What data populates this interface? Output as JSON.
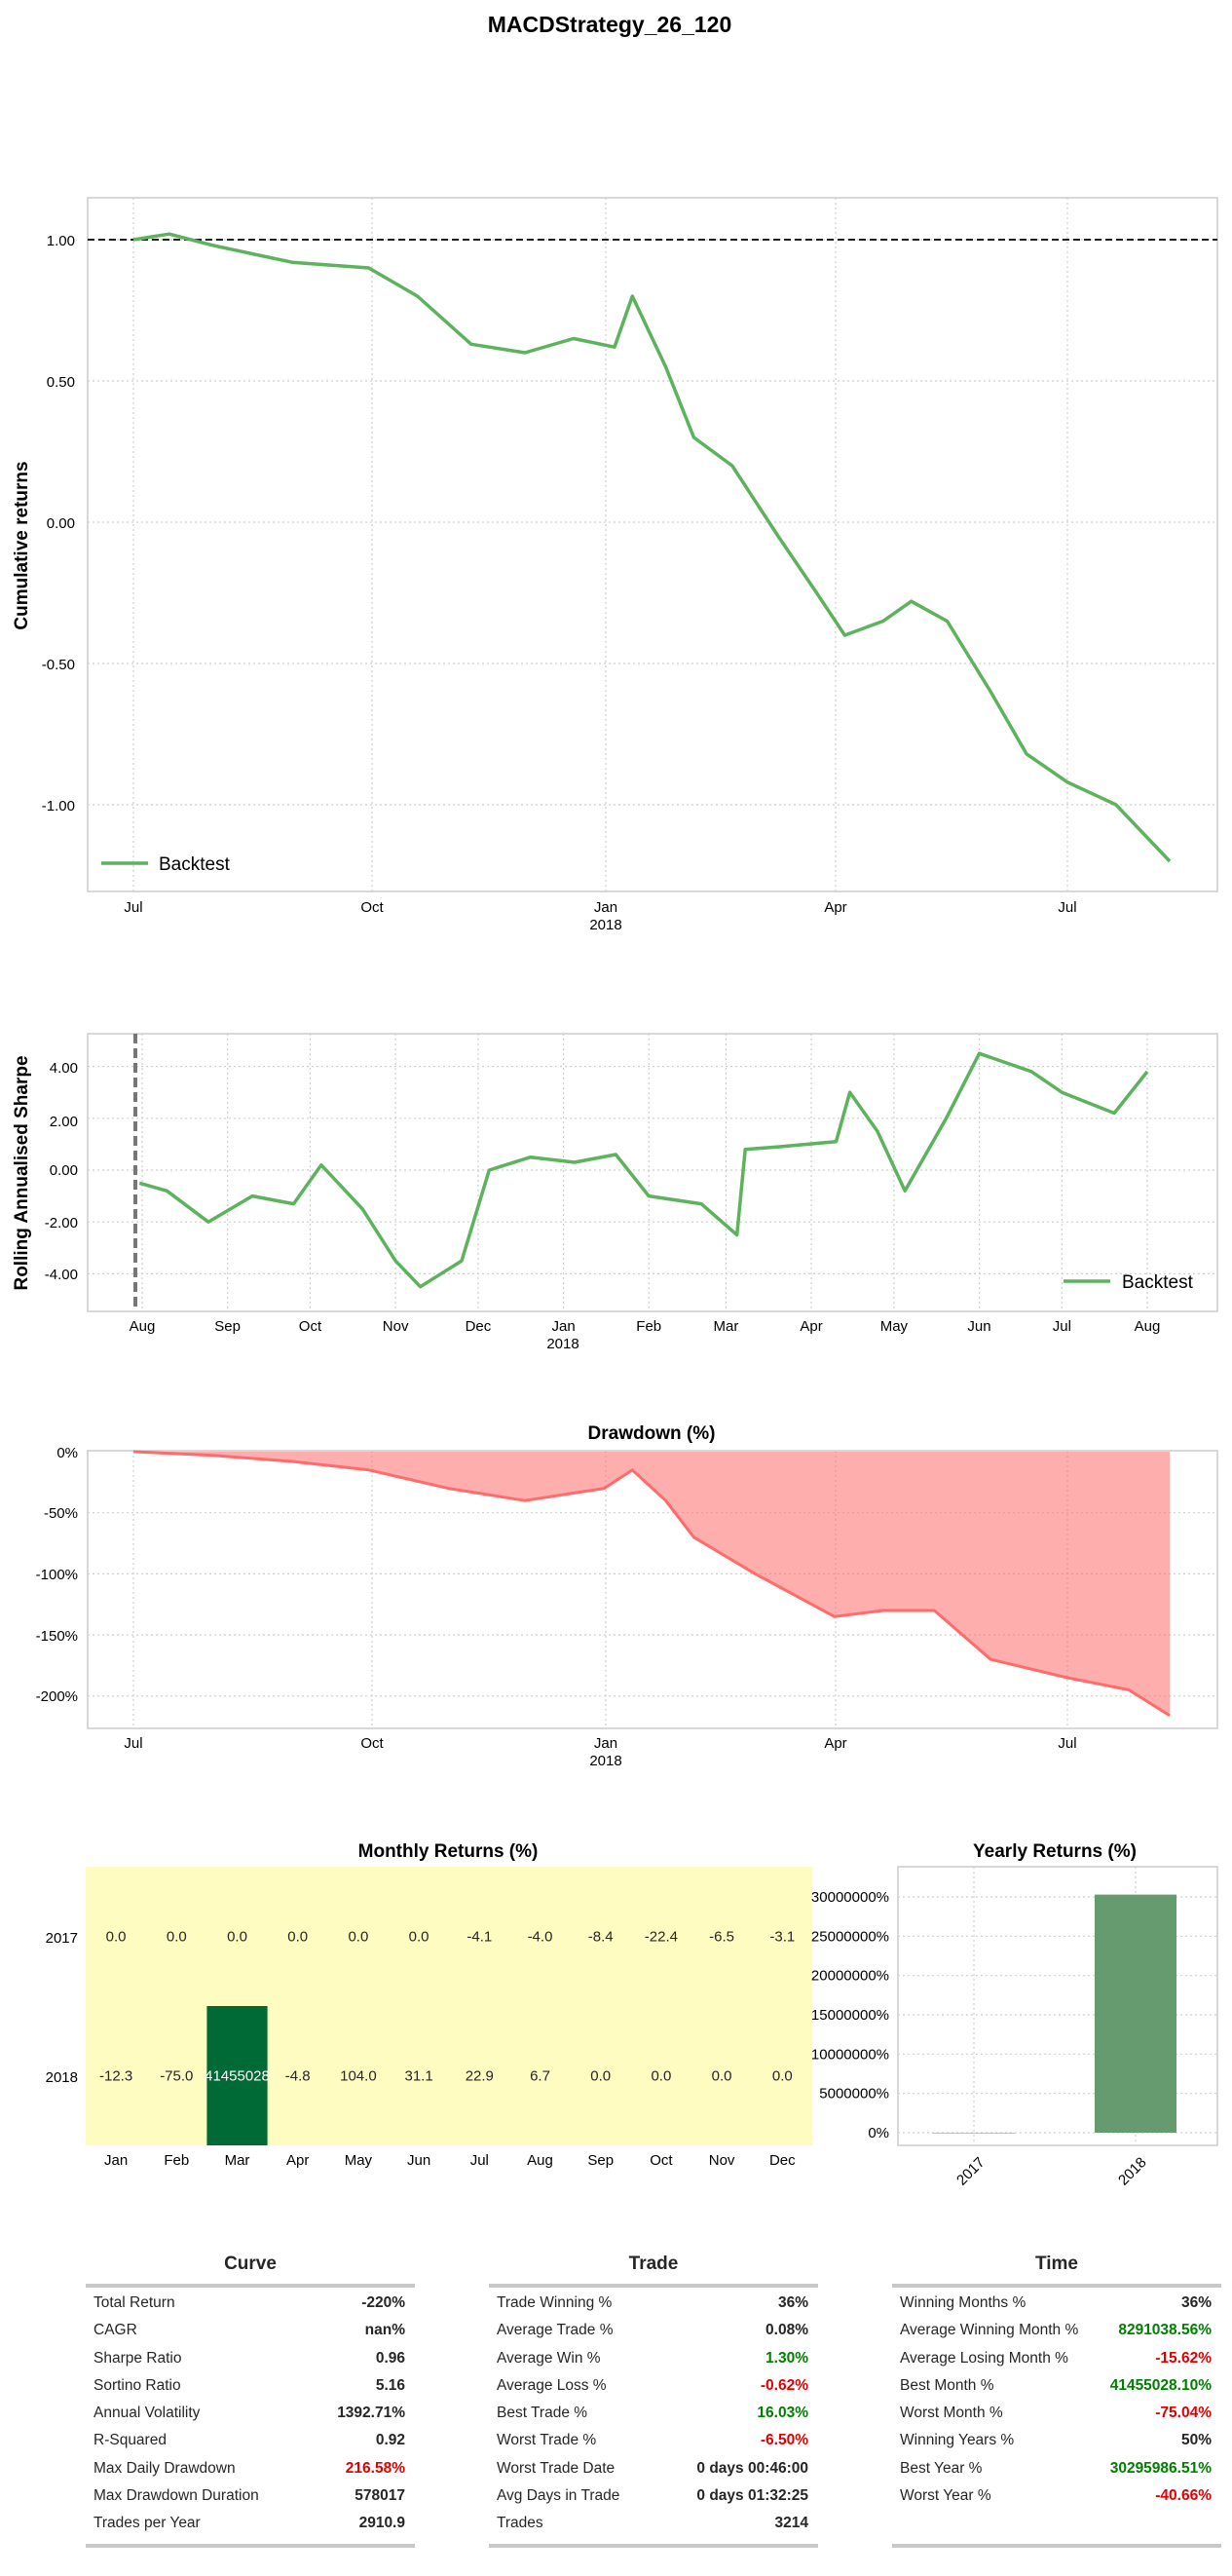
{
  "suptitle": "MACDStrategy_26_120",
  "panels": {
    "cumret": {
      "ylabel": "Cumulative returns",
      "yticks": [
        "1.00",
        "0.50",
        "0.00",
        "-0.50",
        "-1.00"
      ],
      "xticks": [
        "Jul",
        "Oct",
        "Jan",
        "Apr",
        "Jul"
      ],
      "xsub": "2018",
      "legend": "Backtest"
    },
    "sharpe": {
      "ylabel": "Rolling Annualised Sharpe",
      "yticks": [
        "4.00",
        "2.00",
        "0.00",
        "-2.00",
        "-4.00"
      ],
      "xticks": [
        "Aug",
        "Sep",
        "Oct",
        "Nov",
        "Dec",
        "Jan",
        "Feb",
        "Mar",
        "Apr",
        "May",
        "Jun",
        "Jul",
        "Aug"
      ],
      "xsub": "2018",
      "legend": "Backtest"
    },
    "drawdown": {
      "title": "Drawdown (%)",
      "yticks": [
        "0%",
        "-50%",
        "-100%",
        "-150%",
        "-200%"
      ],
      "xticks": [
        "Jul",
        "Oct",
        "Jan",
        "Apr",
        "Jul"
      ],
      "xsub": "2018"
    },
    "monthly": {
      "title": "Monthly Returns (%)",
      "rows": [
        "2017",
        "2018"
      ],
      "cols": [
        "Jan",
        "Feb",
        "Mar",
        "Apr",
        "May",
        "Jun",
        "Jul",
        "Aug",
        "Sep",
        "Oct",
        "Nov",
        "Dec"
      ],
      "cells": [
        [
          "0.0",
          "0.0",
          "0.0",
          "0.0",
          "0.0",
          "0.0",
          "-4.1",
          "-4.0",
          "-8.4",
          "-22.4",
          "-6.5",
          "-3.1"
        ],
        [
          "-12.3",
          "-75.0",
          "41455028",
          "-4.8",
          "104.0",
          "31.1",
          "22.9",
          "6.7",
          "0.0",
          "0.0",
          "0.0",
          "0.0"
        ]
      ],
      "colors": {
        "base": "#fefcc1",
        "highlight": "#006a37"
      }
    },
    "yearly": {
      "title": "Yearly Returns (%)",
      "yticks": [
        "30000000%",
        "25000000%",
        "20000000%",
        "15000000%",
        "10000000%",
        "5000000%",
        "0%"
      ],
      "xticks": [
        "2017",
        "2018"
      ]
    }
  },
  "stats": {
    "curve": {
      "title": "Curve",
      "rows": [
        {
          "label": "Total Return",
          "value": "-220%"
        },
        {
          "label": "CAGR",
          "value": "nan%"
        },
        {
          "label": "Sharpe Ratio",
          "value": "0.96"
        },
        {
          "label": "Sortino Ratio",
          "value": "5.16"
        },
        {
          "label": "Annual Volatility",
          "value": "1392.71%"
        },
        {
          "label": "R-Squared",
          "value": "0.92"
        },
        {
          "label": "Max Daily Drawdown",
          "value": "216.58%",
          "tone": "neg"
        },
        {
          "label": "Max Drawdown Duration",
          "value": "578017"
        },
        {
          "label": "Trades per Year",
          "value": "2910.9"
        }
      ]
    },
    "trade": {
      "title": "Trade",
      "rows": [
        {
          "label": "Trade Winning %",
          "value": "36%"
        },
        {
          "label": "Average Trade %",
          "value": "0.08%"
        },
        {
          "label": "Average Win %",
          "value": "1.30%",
          "tone": "pos"
        },
        {
          "label": "Average Loss %",
          "value": "-0.62%",
          "tone": "neg"
        },
        {
          "label": "Best Trade %",
          "value": "16.03%",
          "tone": "pos"
        },
        {
          "label": "Worst Trade %",
          "value": "-6.50%",
          "tone": "neg"
        },
        {
          "label": "Worst Trade Date",
          "value": "0 days 00:46:00"
        },
        {
          "label": "Avg Days in Trade",
          "value": "0 days 01:32:25"
        },
        {
          "label": "Trades",
          "value": "3214"
        }
      ]
    },
    "time": {
      "title": "Time",
      "rows": [
        {
          "label": "Winning Months %",
          "value": "36%"
        },
        {
          "label": "Average Winning Month %",
          "value": "8291038.56%",
          "tone": "pos"
        },
        {
          "label": "Average Losing Month %",
          "value": "-15.62%",
          "tone": "neg"
        },
        {
          "label": "Best Month %",
          "value": "41455028.10%",
          "tone": "pos"
        },
        {
          "label": "Worst Month %",
          "value": "-75.04%",
          "tone": "neg"
        },
        {
          "label": "Winning Years %",
          "value": "50%"
        },
        {
          "label": "Best Year %",
          "value": "30295986.51%",
          "tone": "pos"
        },
        {
          "label": "Worst Year %",
          "value": "-40.66%",
          "tone": "neg"
        }
      ]
    }
  },
  "chart_data": [
    {
      "type": "line",
      "title": "",
      "ylabel": "Cumulative returns",
      "xlabel": "2018",
      "ylim": [
        -1.3,
        1.05
      ],
      "series": [
        {
          "name": "Backtest",
          "color": "#5cb25d",
          "x": [
            "2017-07-01",
            "2017-07-15",
            "2017-08-01",
            "2017-09-01",
            "2017-10-01",
            "2017-10-20",
            "2017-11-10",
            "2017-12-01",
            "2017-12-20",
            "2018-01-05",
            "2018-01-12",
            "2018-01-25",
            "2018-02-05",
            "2018-02-20",
            "2018-03-10",
            "2018-03-25",
            "2018-04-05",
            "2018-04-20",
            "2018-05-01",
            "2018-05-15",
            "2018-06-01",
            "2018-06-15",
            "2018-07-01",
            "2018-07-20",
            "2018-08-10"
          ],
          "y": [
            1.0,
            1.02,
            0.98,
            0.92,
            0.9,
            0.8,
            0.63,
            0.6,
            0.65,
            0.62,
            0.8,
            0.55,
            0.3,
            0.2,
            -0.05,
            -0.25,
            -0.4,
            -0.35,
            -0.28,
            -0.35,
            -0.6,
            -0.82,
            -0.92,
            -1.0,
            -1.2
          ]
        }
      ],
      "reference_line": 1.0
    },
    {
      "type": "line",
      "title": "",
      "ylabel": "Rolling Annualised Sharpe",
      "xlabel": "2018",
      "ylim": [
        -5.3,
        5.1
      ],
      "series": [
        {
          "name": "Backtest",
          "color": "#5cb25d",
          "x": [
            "2017-07-31",
            "2017-08-10",
            "2017-08-25",
            "2017-09-10",
            "2017-09-25",
            "2017-10-05",
            "2017-10-20",
            "2017-11-01",
            "2017-11-10",
            "2017-11-25",
            "2017-12-05",
            "2017-12-20",
            "2018-01-05",
            "2018-01-20",
            "2018-02-01",
            "2018-02-20",
            "2018-03-05",
            "2018-03-08",
            "2018-03-20",
            "2018-04-10",
            "2018-04-15",
            "2018-04-25",
            "2018-05-05",
            "2018-05-20",
            "2018-06-01",
            "2018-06-20",
            "2018-07-01",
            "2018-07-20",
            "2018-08-01"
          ],
          "y": [
            -0.5,
            -0.8,
            -2.0,
            -1.0,
            -1.3,
            0.2,
            -1.5,
            -3.5,
            -4.5,
            -3.5,
            0.0,
            0.5,
            0.3,
            0.6,
            -1.0,
            -1.3,
            -2.5,
            0.8,
            0.9,
            1.1,
            3.0,
            1.5,
            -0.8,
            2.0,
            4.5,
            3.8,
            3.0,
            2.2,
            3.8
          ]
        }
      ],
      "vline": "2017-07-31"
    },
    {
      "type": "area",
      "title": "Drawdown (%)",
      "ylim": [
        -225,
        0
      ],
      "series": [
        {
          "name": "Drawdown",
          "color": "#ff6b6b",
          "x": [
            "2017-07-01",
            "2017-08-01",
            "2017-09-01",
            "2017-10-01",
            "2017-11-01",
            "2017-12-01",
            "2018-01-01",
            "2018-01-12",
            "2018-01-25",
            "2018-02-05",
            "2018-03-01",
            "2018-04-01",
            "2018-04-20",
            "2018-05-10",
            "2018-06-01",
            "2018-07-01",
            "2018-07-25",
            "2018-08-10"
          ],
          "y": [
            0,
            -3,
            -8,
            -15,
            -30,
            -40,
            -30,
            -15,
            -40,
            -70,
            -100,
            -135,
            -130,
            -130,
            -170,
            -185,
            -195,
            -216
          ]
        }
      ]
    },
    {
      "type": "heatmap",
      "title": "Monthly Returns (%)",
      "rows": [
        "2017",
        "2018"
      ],
      "cols": [
        "Jan",
        "Feb",
        "Mar",
        "Apr",
        "May",
        "Jun",
        "Jul",
        "Aug",
        "Sep",
        "Oct",
        "Nov",
        "Dec"
      ],
      "values": [
        [
          0.0,
          0.0,
          0.0,
          0.0,
          0.0,
          0.0,
          -4.1,
          -4.0,
          -8.4,
          -22.4,
          -6.5,
          -3.1
        ],
        [
          -12.3,
          -75.0,
          41455028,
          -4.8,
          104.0,
          31.1,
          22.9,
          6.7,
          0.0,
          0.0,
          0.0,
          0.0
        ]
      ]
    },
    {
      "type": "bar",
      "title": "Yearly Returns (%)",
      "categories": [
        "2017",
        "2018"
      ],
      "values": [
        -40.66,
        30295986.51
      ],
      "ylim": [
        -1000000,
        31500000
      ],
      "color": "#669a6f"
    }
  ]
}
